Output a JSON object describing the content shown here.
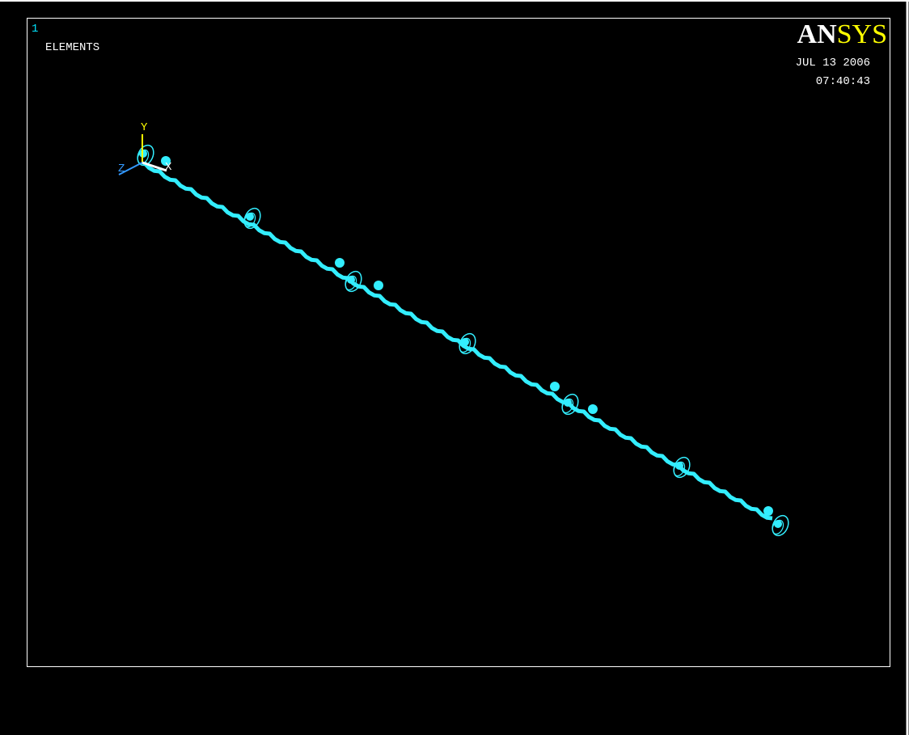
{
  "window": {
    "number": "1",
    "label": "ELEMENTS",
    "logo": {
      "part1": "AN",
      "part2": "SYS"
    },
    "date": "JUL 13 2006",
    "time": "07:40:43"
  },
  "triad": {
    "y": "Y",
    "z": "Z",
    "x": "X"
  }
}
